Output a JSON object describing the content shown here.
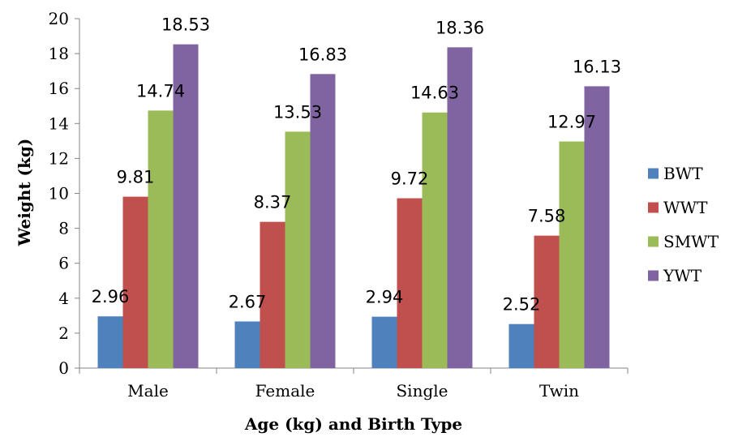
{
  "chart_data": {
    "type": "bar",
    "title": "",
    "xlabel": "Age (kg) and Birth Type",
    "ylabel": "Weight (kg)",
    "ylim": [
      0,
      20
    ],
    "ytick_step": 2,
    "grid": false,
    "legend_position": "right",
    "categories": [
      "Male",
      "Female",
      "Single",
      "Twin"
    ],
    "series": [
      {
        "name": "BWT",
        "color": "#4F81BD",
        "values": [
          2.96,
          2.67,
          2.94,
          2.52
        ]
      },
      {
        "name": "WWT",
        "color": "#C0504D",
        "values": [
          9.81,
          8.37,
          9.72,
          7.58
        ]
      },
      {
        "name": "SMWT",
        "color": "#9BBB59",
        "values": [
          14.74,
          13.53,
          14.63,
          12.97
        ]
      },
      {
        "name": "YWT",
        "color": "#8064A2",
        "values": [
          18.53,
          16.83,
          18.36,
          16.13
        ]
      }
    ]
  }
}
